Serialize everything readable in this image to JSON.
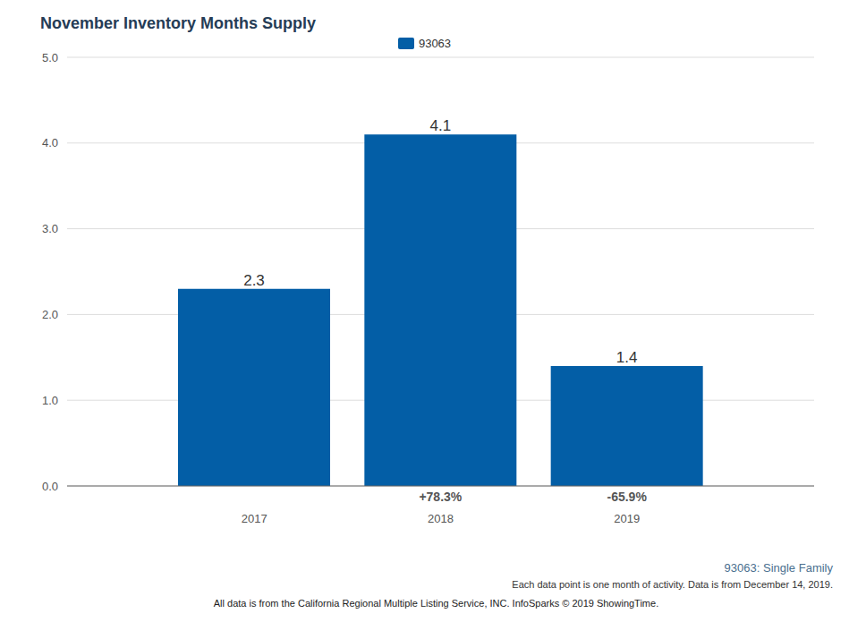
{
  "chart_data": {
    "type": "bar",
    "title": "November Inventory Months Supply",
    "categories": [
      "2017",
      "2018",
      "2019"
    ],
    "series": [
      {
        "name": "93063",
        "color": "#035ea6",
        "values": [
          2.3,
          4.1,
          1.4
        ]
      }
    ],
    "changes": [
      null,
      78.3,
      -65.9
    ],
    "change_labels": [
      null,
      "+78.3%",
      "-65.9%"
    ],
    "ylim": [
      0,
      5
    ],
    "yticks": [
      {
        "value": 0,
        "label": "0.0"
      },
      {
        "value": 1,
        "label": "1.0"
      },
      {
        "value": 2,
        "label": "2.0"
      },
      {
        "value": 3,
        "label": "3.0"
      },
      {
        "value": 4,
        "label": "4.0"
      },
      {
        "value": 5,
        "label": "5.0"
      }
    ],
    "grid": true,
    "legend": "top",
    "data_labels": true,
    "notes": [
      "93063: Single Family",
      "Each data point is one month of activity. Data is from December 14, 2019."
    ],
    "source": "All data is from the California Regional Multiple Listing Service, INC. InfoSparks © 2019 ShowingTime."
  }
}
